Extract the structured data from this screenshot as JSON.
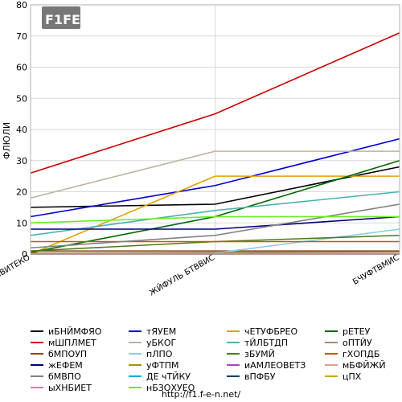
{
  "chart_data": {
    "type": "line",
    "ylabel": "ФЛЮЛИ",
    "ylim": [
      0,
      80
    ],
    "yticks": [
      0,
      10,
      20,
      30,
      40,
      50,
      60,
      70,
      80
    ],
    "categories": [
      "вВИТЕКО",
      "ЖЙФУЛЬ БТВВИС",
      "БЧУФТВМИС"
    ],
    "grid": true,
    "legend_position": "bottom",
    "footer": "http://f1.f-e-n.net/",
    "logo_text": "F1FEN",
    "series": [
      {
        "name": "иБНЙМФЯО",
        "color": "#000000",
        "values": [
          15,
          16,
          28
        ]
      },
      {
        "name": "тЯУЕМ",
        "color": "#0000cc",
        "values": [
          12,
          22,
          37
        ]
      },
      {
        "name": "чЕТУФБРЕО",
        "color": "#e6a000",
        "values": [
          0,
          25,
          25
        ]
      },
      {
        "name": "рЕТЕУ",
        "color": "#006600",
        "values": [
          0.5,
          12,
          30
        ]
      },
      {
        "name": "мШПЛМЕТ",
        "color": "#cc0000",
        "values": [
          26,
          45,
          71
        ]
      },
      {
        "name": "уБКОГ",
        "color": "#c0b0a0",
        "values": [
          18,
          33,
          33
        ]
      },
      {
        "name": "тЙЛБТДП",
        "color": "#4ab0b0",
        "values": [
          6,
          14,
          20
        ]
      },
      {
        "name": "оПТЙУ",
        "color": "#a09070",
        "values": [
          0.3,
          0.5,
          0.8
        ]
      },
      {
        "name": "бМПОУП",
        "color": "#8b4513",
        "values": [
          1,
          1,
          1
        ]
      },
      {
        "name": "пЛПО",
        "color": "#87ceeb",
        "values": [
          null,
          0.3,
          8
        ]
      },
      {
        "name": "зБУМЙ",
        "color": "#4d7a1a",
        "values": [
          1,
          4,
          6
        ]
      },
      {
        "name": "гХОПДБ",
        "color": "#cc5500",
        "values": [
          4,
          4,
          4
        ]
      },
      {
        "name": "жЕФЕМ",
        "color": "#000080",
        "values": [
          8,
          8,
          12
        ]
      },
      {
        "name": "уФТПМ",
        "color": "#999900",
        "values": [
          0.2,
          0.2,
          0.2
        ]
      },
      {
        "name": "иАМЛЕОВЕТЗ",
        "color": "#aa44cc",
        "values": [
          0.1,
          0.1,
          0.1
        ]
      },
      {
        "name": "мБФЙЖЙ",
        "color": "#e0a090",
        "values": [
          0,
          0,
          0
        ]
      },
      {
        "name": "бМВПО",
        "color": "#808080",
        "values": [
          2,
          6,
          16
        ]
      },
      {
        "name": "ДЕ чТЙКУ",
        "color": "#00aadd",
        "values": [
          0,
          0,
          0
        ]
      },
      {
        "name": "вПФБУ",
        "color": "#004466",
        "values": [
          0,
          0,
          0
        ]
      },
      {
        "name": "цПХ",
        "color": "#ccaa00",
        "values": [
          0,
          0,
          0
        ]
      },
      {
        "name": "ыХНБИЕТ",
        "color": "#ff66bb",
        "values": [
          0,
          0,
          0
        ]
      },
      {
        "name": "нБЗОХУЕО",
        "color": "#66ee22",
        "values": [
          10,
          12,
          12
        ]
      }
    ]
  }
}
